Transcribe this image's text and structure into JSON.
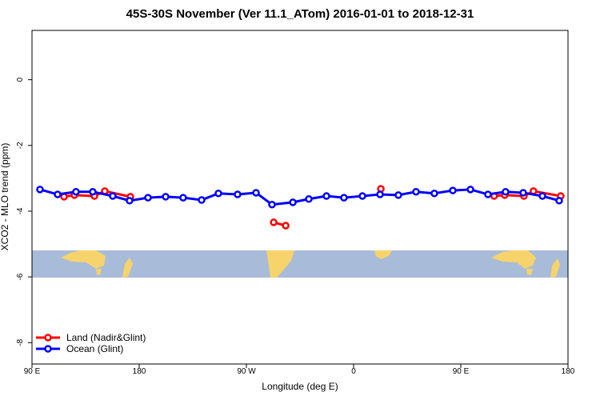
{
  "chart_data": {
    "type": "line",
    "title": "45S-30S November (Ver 11.1_ATom)   2016-01-01 to 2018-12-31",
    "xlabel": "Longitude (deg E)",
    "ylabel": "XCO2 - MLO trend (ppm)",
    "xlim": [
      90,
      540
    ],
    "ylim": [
      -8.65,
      1.5
    ],
    "xticks": [
      {
        "value": 90,
        "label": "90 E"
      },
      180,
      {
        "value": 270,
        "label": "90 W"
      },
      {
        "value": 360,
        "label": "0"
      },
      {
        "value": 450,
        "label": "90 E"
      },
      {
        "value": 540,
        "label": "180"
      }
    ],
    "yticks": [
      0,
      -2,
      -4,
      -6,
      -8
    ],
    "legend": "bottom-left",
    "series": [
      {
        "name": "Land (Nadir&Glint)",
        "color": "#ff0000",
        "x": [
          116.9,
          125.6,
          142.4,
          151.1,
          172.6,
          230,
          292.9,
          303,
          340,
          382.9,
          430,
          478,
          486.9,
          503,
          511,
          533.9
        ],
        "values": [
          -3.56,
          -3.51,
          -3.54,
          -3.39,
          -3.56,
          null,
          -4.34,
          -4.44,
          null,
          -3.32,
          null,
          -3.54,
          -3.51,
          -3.54,
          -3.39,
          -3.54
        ]
      },
      {
        "name": "Ocean (Glint)",
        "color": "#0000ff",
        "x": [
          96.7,
          111.5,
          126.9,
          141,
          157.8,
          171.9,
          187.4,
          202.2,
          216.9,
          232.4,
          246.5,
          262.6,
          278.1,
          291.5,
          309,
          322.4,
          337.2,
          351.9,
          367.4,
          382.2,
          397.6,
          412.4,
          427.8,
          443.3,
          458.1,
          472.8,
          487.6,
          502.4,
          518.5,
          532.6
        ],
        "values": [
          -3.34,
          -3.49,
          -3.41,
          -3.41,
          -3.54,
          -3.68,
          -3.59,
          -3.56,
          -3.59,
          -3.66,
          -3.46,
          -3.49,
          -3.44,
          -3.8,
          -3.73,
          -3.63,
          -3.54,
          -3.59,
          -3.54,
          -3.49,
          -3.51,
          -3.41,
          -3.46,
          -3.37,
          -3.34,
          -3.49,
          -3.41,
          -3.44,
          -3.54,
          -3.68
        ]
      }
    ]
  }
}
